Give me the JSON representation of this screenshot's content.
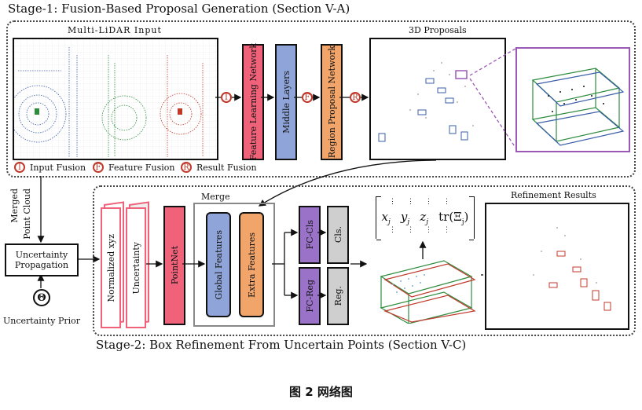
{
  "stage1": {
    "title": "Stage-1: Fusion-Based Proposal Generation (Section V-A)"
  },
  "stage2": {
    "title": "Stage-2: Box Refinement From Uncertain Points (Section V-C)"
  },
  "multi_lidar": {
    "label": "Multi-LiDAR Input"
  },
  "proposals": {
    "label": "3D Proposals"
  },
  "networks": {
    "feature_learning": "Feature Learning Network",
    "middle_layers": "Middle Layers",
    "region_proposal": "Region Proposal Network"
  },
  "fusion_markers": {
    "input": "I",
    "feature": "F",
    "result": "R"
  },
  "legend": {
    "input_fusion": "Input Fusion",
    "feature_fusion": "Feature Fusion",
    "result_fusion": "Result Fusion"
  },
  "merged_point_cloud": {
    "line1": "Merged",
    "line2": "Point Cloud"
  },
  "uncertainty_propagation": {
    "line1": "Uncertainty",
    "line2": "Propagation"
  },
  "uncertainty_prior": {
    "label": "Uncertainty Prior",
    "symbol": "Θ"
  },
  "stage2_blocks": {
    "normalized_xyz": "Normalized xyz",
    "uncertainty": "Uncertainty",
    "pointnet": "PointNet",
    "merge": "Merge",
    "global_features": "Global Features",
    "extra_features": "Extra Features",
    "fc_cls": "FC-Cls",
    "fc_reg": "FC-Reg",
    "cls": "Cls.",
    "reg": "Reg."
  },
  "matrix": {
    "entries": [
      "x",
      "y",
      "z",
      "tr(Ξ"
    ],
    "subscript": "j"
  },
  "refinement": {
    "label": "Refinement Results"
  },
  "figure_caption": "图 2 网络图",
  "colors": {
    "red_block": "#f0627a",
    "blue_block": "#8fa5d9",
    "orange_block": "#f2a56b",
    "purple_block": "#9a72c7",
    "gray_block": "#cfcfcf",
    "fusion_red": "#c0392b",
    "zoom_purple": "#9b59b6"
  }
}
